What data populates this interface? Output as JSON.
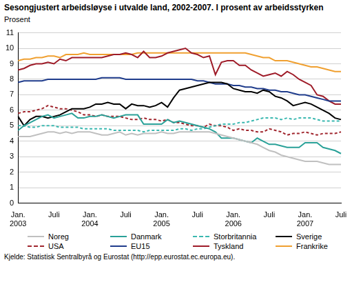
{
  "chart_data": {
    "type": "line",
    "title": "Sesongjustert arbeidsløyse i utvalde land, 2002-2007. I prosent av arbeidsstyrken",
    "y_label": "Prosent",
    "source": "Kjelde: Statistisk Sentralbyrå og Eurostat (http://epp.eurostat.ec.europa.eu).",
    "categories": [
      "Jan. 2003",
      null,
      null,
      null,
      null,
      null,
      "Juli",
      null,
      null,
      null,
      null,
      null,
      "Jan. 2004",
      null,
      null,
      null,
      null,
      null,
      "Juli",
      null,
      null,
      null,
      null,
      null,
      "Jan. 2005",
      null,
      null,
      null,
      null,
      null,
      "Juli",
      null,
      null,
      null,
      null,
      null,
      "Jan. 2006",
      null,
      null,
      null,
      null,
      null,
      "Juli",
      null,
      null,
      null,
      null,
      null,
      "Jan. 2007",
      null,
      null,
      null,
      null,
      null,
      "Juli"
    ],
    "ylim": [
      0,
      11
    ],
    "yticks": [
      0,
      1,
      2,
      3,
      4,
      5,
      6,
      7,
      8,
      9,
      10,
      11
    ],
    "grid": true,
    "legend": "bottom",
    "series": [
      {
        "name": "Noreg",
        "color": "#c0c0c0",
        "line_style": "solid",
        "values": [
          4.3,
          4.3,
          4.3,
          4.4,
          4.5,
          4.6,
          4.6,
          4.5,
          4.6,
          4.5,
          4.6,
          4.6,
          4.6,
          4.5,
          4.4,
          4.4,
          4.5,
          4.6,
          4.4,
          4.5,
          4.4,
          4.5,
          4.5,
          4.5,
          4.6,
          4.5,
          4.5,
          4.6,
          4.6,
          4.6,
          4.6,
          4.6,
          4.6,
          4.5,
          4.4,
          4.3,
          4.2,
          4.1,
          4.0,
          3.9,
          3.8,
          3.6,
          3.4,
          3.3,
          3.1,
          3.0,
          2.9,
          2.8,
          2.7,
          2.7,
          2.7,
          2.6,
          2.5,
          2.5,
          2.5
        ]
      },
      {
        "name": "Danmark",
        "color": "#2aa198",
        "line_style": "solid",
        "values": [
          4.7,
          5.0,
          5.2,
          5.4,
          5.6,
          5.7,
          5.5,
          5.6,
          5.7,
          5.8,
          5.5,
          5.5,
          5.6,
          5.6,
          5.7,
          5.6,
          5.5,
          5.6,
          5.7,
          5.7,
          5.7,
          5.1,
          5.1,
          5.1,
          5.1,
          5.4,
          5.2,
          5.3,
          5.2,
          5.1,
          5.0,
          4.9,
          4.8,
          4.6,
          4.2,
          4.2,
          4.2,
          4.1,
          4.0,
          3.9,
          4.2,
          4.0,
          3.8,
          3.8,
          3.7,
          3.6,
          3.6,
          3.6,
          3.9,
          3.9,
          3.9,
          3.6,
          3.5,
          3.4,
          3.2
        ]
      },
      {
        "name": "Storbritannia",
        "color": "#3ab8b0",
        "line_style": "dashed",
        "values": [
          5.0,
          5.0,
          4.9,
          4.9,
          5.0,
          5.0,
          5.0,
          4.9,
          4.9,
          4.9,
          4.9,
          4.8,
          4.8,
          4.8,
          4.8,
          4.8,
          4.7,
          4.7,
          4.7,
          4.7,
          4.7,
          4.6,
          4.7,
          4.7,
          4.7,
          4.7,
          4.7,
          4.8,
          4.8,
          4.7,
          4.8,
          4.8,
          4.9,
          5.0,
          5.1,
          5.1,
          5.1,
          5.2,
          5.2,
          5.3,
          5.4,
          5.5,
          5.5,
          5.5,
          5.4,
          5.5,
          5.4,
          5.5,
          5.5,
          5.5,
          5.4,
          5.3,
          5.3,
          5.3,
          5.3
        ]
      },
      {
        "name": "Sverige",
        "color": "#000000",
        "line_style": "solid",
        "values": [
          5.6,
          5.0,
          5.4,
          5.6,
          5.6,
          5.5,
          5.6,
          5.7,
          5.9,
          6.1,
          6.1,
          6.1,
          6.2,
          6.4,
          6.4,
          6.5,
          6.4,
          6.4,
          6.1,
          6.4,
          6.3,
          6.3,
          6.2,
          6.3,
          6.5,
          6.2,
          6.8,
          7.3,
          7.4,
          7.5,
          7.6,
          7.7,
          7.8,
          7.8,
          7.8,
          7.7,
          7.4,
          7.3,
          7.2,
          7.2,
          7.1,
          7.3,
          7.2,
          6.9,
          6.8,
          6.6,
          6.3,
          6.4,
          6.5,
          6.4,
          6.2,
          6.0,
          5.8,
          5.5,
          5.4
        ]
      },
      {
        "name": "USA",
        "color": "#a0262e",
        "line_style": "dashed",
        "values": [
          5.8,
          5.9,
          5.9,
          6.0,
          6.1,
          6.3,
          6.2,
          6.1,
          6.1,
          6.0,
          5.9,
          5.7,
          5.7,
          5.6,
          5.7,
          5.6,
          5.6,
          5.6,
          5.5,
          5.4,
          5.4,
          5.5,
          5.4,
          5.4,
          5.3,
          5.4,
          5.2,
          5.2,
          5.1,
          5.0,
          5.0,
          4.9,
          5.1,
          5.0,
          5.0,
          4.9,
          4.7,
          4.8,
          4.7,
          4.7,
          4.6,
          4.6,
          4.8,
          4.7,
          4.6,
          4.4,
          4.5,
          4.5,
          4.6,
          4.5,
          4.4,
          4.5,
          4.5,
          4.5,
          4.6
        ]
      },
      {
        "name": "EU15",
        "color": "#1f3c8c",
        "line_style": "solid",
        "values": [
          7.8,
          7.9,
          7.9,
          7.9,
          7.9,
          8.0,
          8.0,
          8.0,
          8.0,
          8.0,
          8.0,
          8.0,
          8.0,
          8.0,
          8.1,
          8.1,
          8.1,
          8.1,
          8.0,
          8.0,
          8.0,
          8.0,
          8.0,
          8.0,
          8.0,
          8.0,
          8.0,
          8.0,
          8.0,
          8.0,
          7.9,
          7.9,
          7.8,
          7.7,
          7.7,
          7.7,
          7.6,
          7.6,
          7.5,
          7.5,
          7.4,
          7.4,
          7.3,
          7.3,
          7.2,
          7.2,
          7.1,
          7.0,
          7.0,
          6.9,
          6.8,
          6.7,
          6.6,
          6.6,
          6.6
        ]
      },
      {
        "name": "Tyskland",
        "color": "#9e1b28",
        "line_style": "solid",
        "values": [
          8.6,
          8.7,
          8.9,
          9.0,
          9.0,
          9.1,
          9.0,
          9.3,
          9.2,
          9.4,
          9.4,
          9.4,
          9.4,
          9.4,
          9.4,
          9.5,
          9.6,
          9.6,
          9.7,
          9.6,
          9.4,
          9.8,
          9.4,
          9.4,
          9.5,
          9.7,
          9.8,
          9.9,
          10.0,
          9.7,
          9.6,
          9.4,
          9.5,
          8.3,
          9.1,
          9.2,
          9.2,
          8.9,
          8.9,
          8.6,
          8.4,
          8.2,
          8.3,
          8.4,
          8.2,
          8.5,
          8.3,
          8.0,
          7.8,
          7.6,
          7.0,
          6.9,
          6.6,
          6.4,
          6.4
        ]
      },
      {
        "name": "Frankrike",
        "color": "#f0a030",
        "line_style": "solid",
        "values": [
          9.2,
          9.3,
          9.3,
          9.4,
          9.4,
          9.5,
          9.5,
          9.4,
          9.6,
          9.6,
          9.6,
          9.7,
          9.6,
          9.6,
          9.6,
          9.6,
          9.6,
          9.6,
          9.6,
          9.6,
          9.7,
          9.7,
          9.7,
          9.7,
          9.7,
          9.7,
          9.7,
          9.7,
          9.7,
          9.7,
          9.7,
          9.7,
          9.7,
          9.7,
          9.7,
          9.7,
          9.7,
          9.7,
          9.7,
          9.6,
          9.5,
          9.4,
          9.4,
          9.2,
          9.2,
          9.2,
          9.1,
          9.0,
          8.9,
          8.8,
          8.8,
          8.7,
          8.6,
          8.5,
          8.5
        ]
      }
    ]
  }
}
